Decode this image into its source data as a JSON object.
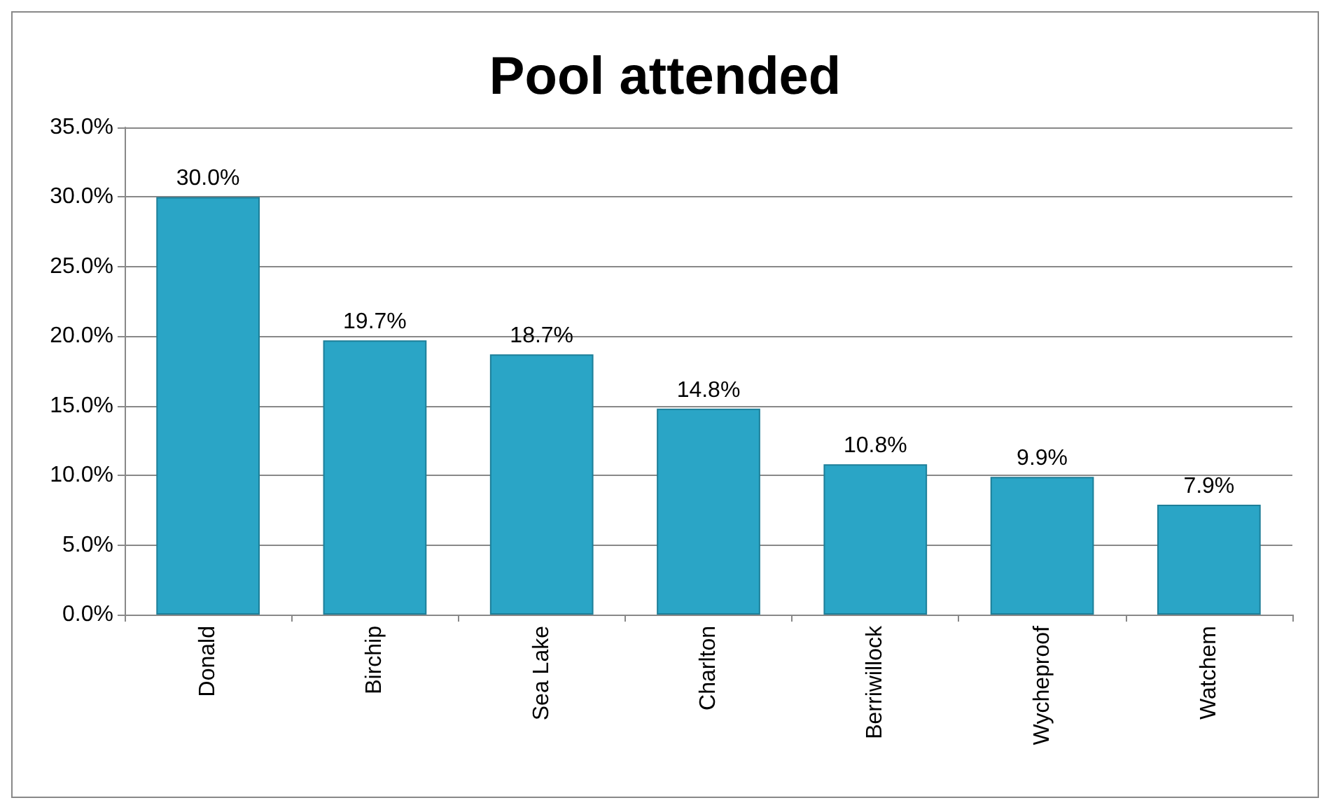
{
  "chart_data": {
    "type": "bar",
    "title": "Pool attended",
    "categories": [
      "Donald",
      "Birchip",
      "Sea Lake",
      "Charlton",
      "Berriwillock",
      "Wycheproof",
      "Watchem"
    ],
    "values": [
      30.0,
      19.7,
      18.7,
      14.8,
      10.8,
      9.9,
      7.9
    ],
    "value_labels": [
      "30.0%",
      "19.7%",
      "18.7%",
      "14.8%",
      "10.8%",
      "9.9%",
      "7.9%"
    ],
    "color": "#2aa5c6",
    "ylim": [
      0,
      35
    ],
    "yticks": [
      {
        "value": 0,
        "label": "0.0%"
      },
      {
        "value": 5,
        "label": "5.0%"
      },
      {
        "value": 10,
        "label": "10.0%"
      },
      {
        "value": 15,
        "label": "15.0%"
      },
      {
        "value": 20,
        "label": "20.0%"
      },
      {
        "value": 25,
        "label": "25.0%"
      },
      {
        "value": 30,
        "label": "30.0%"
      },
      {
        "value": 35,
        "label": "35.0%"
      }
    ],
    "grid": "y"
  }
}
